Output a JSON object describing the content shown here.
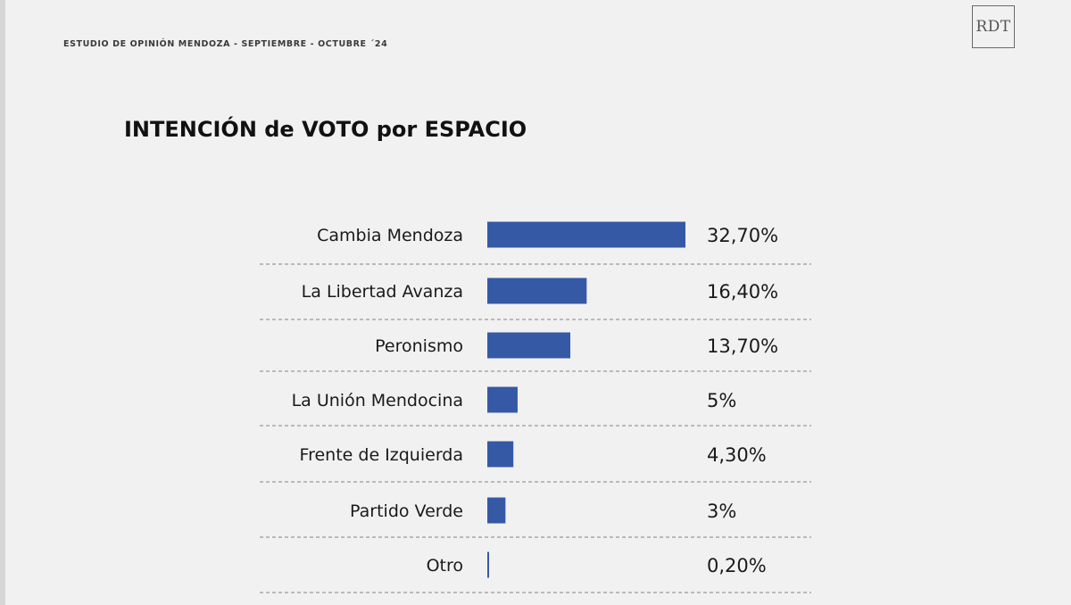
{
  "header": {
    "study_title": "ESTUDIO DE OPINIÓN MENDOZA - SEPTIEMBRE - OCTUBRE ´24",
    "logo_text": "RDT"
  },
  "colors": {
    "bar": "#3659a6",
    "divider": "#9a9a9a",
    "background": "#f1f1f1"
  },
  "chart_data": {
    "type": "bar",
    "orientation": "horizontal",
    "title": "INTENCIÓN de VOTO por ESPACIO",
    "categories": [
      "Cambia Mendoza",
      "La Libertad Avanza",
      "Peronismo",
      "La Unión Mendocina",
      "Frente de Izquierda",
      "Partido Verde",
      "Otro"
    ],
    "values": [
      32.7,
      16.4,
      13.7,
      5,
      4.3,
      3,
      0.2
    ],
    "value_labels": [
      "32,70%",
      "16,40%",
      "13,70%",
      "5%",
      "4,30%",
      "3%",
      "0,20%"
    ],
    "unit": "%",
    "xlim": [
      0,
      32.7
    ],
    "grid": false,
    "legend": "none"
  }
}
